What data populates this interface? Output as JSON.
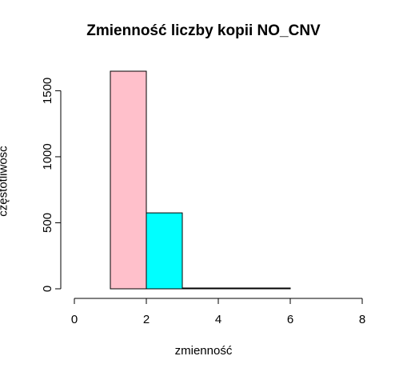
{
  "chart_data": {
    "type": "bar",
    "title": "Zmienność liczby kopii NO_CNV",
    "xlabel": "zmienność",
    "ylabel": "częstotliwość",
    "bins": [
      {
        "from": 1,
        "to": 2,
        "count": 1648,
        "color": "#ffc0cb"
      },
      {
        "from": 2,
        "to": 3,
        "count": 575,
        "color": "#00ffff"
      },
      {
        "from": 3,
        "to": 4,
        "count": 5,
        "color": "#ffc0cb"
      },
      {
        "from": 4,
        "to": 5,
        "count": 5,
        "color": "#00ffff"
      },
      {
        "from": 5,
        "to": 6,
        "count": 5,
        "color": "#ffc0cb"
      }
    ],
    "xlim": [
      0,
      8
    ],
    "ylim": [
      0,
      1650
    ],
    "x_ticks": [
      "0",
      "2",
      "4",
      "6",
      "8"
    ],
    "y_ticks": [
      "0",
      "500",
      "1000",
      "1500"
    ],
    "grid": false
  }
}
